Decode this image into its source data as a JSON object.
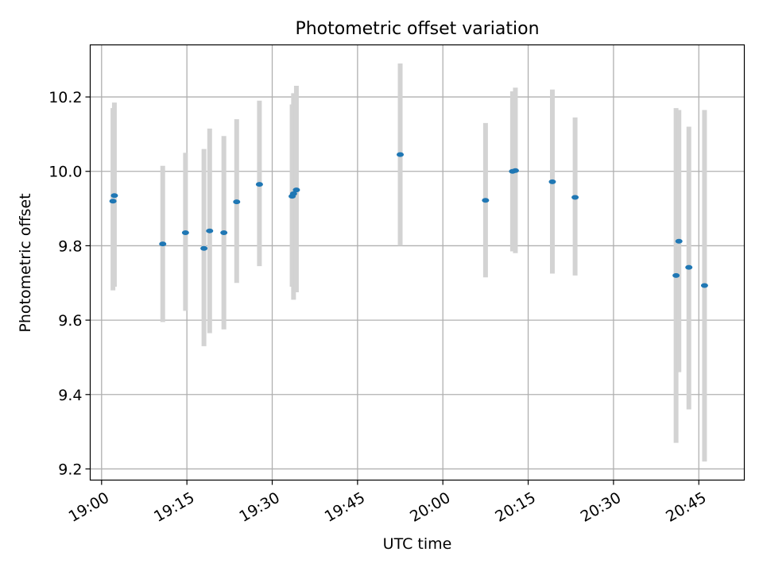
{
  "chart_data": {
    "type": "scatter",
    "title": "Photometric offset variation",
    "xlabel": "UTC time",
    "ylabel": "Photometric offset",
    "x_ticks": [
      "19:00",
      "19:15",
      "19:30",
      "19:45",
      "20:00",
      "20:15",
      "20:30",
      "20:45"
    ],
    "y_ticks": [
      "9.2",
      "9.4",
      "9.6",
      "9.8",
      "10.0",
      "10.2"
    ],
    "xlim": [
      "18:58",
      "20:53"
    ],
    "ylim": [
      9.17,
      10.34
    ],
    "grid": true,
    "marker_color": "#1f77b4",
    "errorbar_color": "#d3d3d3",
    "points": [
      {
        "time": "19:02:00",
        "y": 9.92,
        "low": 9.68,
        "high": 10.17
      },
      {
        "time": "19:02:15",
        "y": 9.935,
        "low": 9.69,
        "high": 10.185
      },
      {
        "time": "19:10:45",
        "y": 9.805,
        "low": 9.595,
        "high": 10.015
      },
      {
        "time": "19:14:45",
        "y": 9.835,
        "low": 9.625,
        "high": 10.05
      },
      {
        "time": "19:18:00",
        "y": 9.793,
        "low": 9.53,
        "high": 10.06
      },
      {
        "time": "19:19:00",
        "y": 9.84,
        "low": 9.565,
        "high": 10.115
      },
      {
        "time": "19:21:30",
        "y": 9.835,
        "low": 9.575,
        "high": 10.095
      },
      {
        "time": "19:23:45",
        "y": 9.918,
        "low": 9.7,
        "high": 10.14
      },
      {
        "time": "19:27:45",
        "y": 9.965,
        "low": 9.745,
        "high": 10.19
      },
      {
        "time": "19:33:30",
        "y": 9.933,
        "low": 9.69,
        "high": 10.18
      },
      {
        "time": "19:33:45",
        "y": 9.94,
        "low": 9.655,
        "high": 10.21
      },
      {
        "time": "19:34:15",
        "y": 9.95,
        "low": 9.675,
        "high": 10.23
      },
      {
        "time": "19:52:30",
        "y": 10.045,
        "low": 9.8,
        "high": 10.29
      },
      {
        "time": "20:07:30",
        "y": 9.922,
        "low": 9.715,
        "high": 10.13
      },
      {
        "time": "20:12:15",
        "y": 10.0,
        "low": 9.785,
        "high": 10.215
      },
      {
        "time": "20:12:45",
        "y": 10.002,
        "low": 9.78,
        "high": 10.225
      },
      {
        "time": "20:19:15",
        "y": 9.972,
        "low": 9.725,
        "high": 10.22
      },
      {
        "time": "20:23:15",
        "y": 9.93,
        "low": 9.72,
        "high": 10.145
      },
      {
        "time": "20:41:00",
        "y": 9.72,
        "low": 9.27,
        "high": 10.17
      },
      {
        "time": "20:41:30",
        "y": 9.812,
        "low": 9.46,
        "high": 10.165
      },
      {
        "time": "20:43:15",
        "y": 9.742,
        "low": 9.36,
        "high": 10.12
      },
      {
        "time": "20:46:00",
        "y": 9.693,
        "low": 9.22,
        "high": 10.165
      }
    ]
  }
}
